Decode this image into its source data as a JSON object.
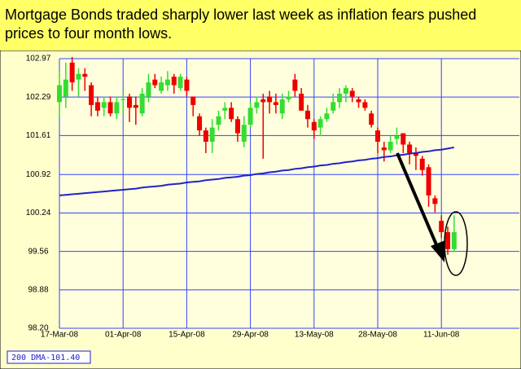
{
  "chart_data": {
    "type": "candlestick",
    "title": "Mortgage Bonds traded sharply lower last week as inflation fears pushed prices to four month lows.",
    "categories": [
      "17-Mar-08",
      null,
      null,
      null,
      null,
      null,
      null,
      null,
      null,
      null,
      "01-Apr-08",
      null,
      null,
      null,
      null,
      null,
      null,
      null,
      null,
      null,
      "15-Apr-08",
      null,
      null,
      null,
      null,
      null,
      null,
      null,
      null,
      null,
      "29-Apr-08",
      null,
      null,
      null,
      null,
      null,
      null,
      null,
      null,
      null,
      "13-May-08",
      null,
      null,
      null,
      null,
      null,
      null,
      null,
      null,
      null,
      "28-May-08",
      null,
      null,
      null,
      null,
      null,
      null,
      null,
      null,
      null,
      "11-Jun-08",
      null,
      null
    ],
    "open": [
      102.2,
      102.3,
      102.9,
      102.6,
      102.7,
      102.5,
      102.2,
      102.1,
      102.2,
      102.0,
      102.25,
      102.3,
      102.15,
      102.0,
      102.3,
      102.6,
      102.4,
      102.5,
      102.65,
      102.45,
      102.6,
      102.3,
      101.95,
      101.7,
      101.5,
      101.8,
      102.05,
      102.1,
      101.9,
      101.5,
      101.8,
      102.1,
      102.25,
      102.3,
      102.2,
      102.0,
      102.25,
      102.6,
      102.35,
      102.05,
      101.85,
      101.75,
      101.9,
      102.05,
      102.2,
      102.35,
      102.4,
      102.25,
      102.2,
      102.0,
      101.7,
      101.4,
      101.35,
      101.55,
      101.65,
      101.45,
      101.3,
      101.2,
      101.05,
      100.5,
      100.1,
      99.9,
      99.6
    ],
    "high": [
      102.75,
      102.9,
      103.0,
      102.8,
      102.8,
      102.55,
      102.3,
      102.3,
      102.3,
      102.3,
      102.35,
      102.35,
      102.3,
      102.45,
      102.7,
      102.7,
      102.65,
      102.75,
      102.7,
      102.7,
      102.65,
      102.3,
      102.0,
      101.75,
      101.9,
      102.05,
      102.2,
      102.2,
      101.95,
      101.95,
      102.2,
      102.3,
      102.35,
      102.4,
      102.35,
      102.35,
      102.4,
      102.7,
      102.45,
      102.15,
      101.9,
      101.95,
      102.1,
      102.35,
      102.45,
      102.5,
      102.45,
      102.3,
      102.25,
      102.05,
      101.75,
      101.5,
      101.6,
      101.75,
      101.65,
      101.5,
      101.4,
      101.25,
      101.1,
      100.55,
      100.2,
      100.0,
      100.2
    ],
    "low": [
      101.95,
      102.1,
      102.4,
      102.3,
      102.4,
      101.95,
      101.95,
      101.95,
      101.95,
      101.9,
      102.0,
      101.85,
      101.8,
      101.95,
      102.2,
      102.45,
      102.35,
      102.4,
      102.35,
      102.4,
      102.3,
      101.95,
      101.6,
      101.3,
      101.3,
      101.7,
      101.9,
      101.85,
      101.5,
      101.4,
      101.75,
      102.0,
      101.2,
      102.0,
      102.0,
      101.9,
      102.2,
      102.3,
      102.05,
      101.75,
      101.55,
      101.6,
      101.85,
      102.0,
      102.1,
      102.2,
      102.2,
      102.1,
      102.05,
      101.75,
      101.3,
      101.15,
      101.3,
      101.45,
      101.3,
      101.1,
      101.0,
      100.9,
      100.35,
      100.25,
      99.8,
      99.5,
      99.55
    ],
    "close": [
      102.5,
      102.6,
      102.55,
      102.7,
      102.65,
      102.15,
      102.05,
      102.2,
      102.0,
      102.2,
      102.25,
      102.1,
      102.1,
      102.35,
      102.55,
      102.5,
      102.55,
      102.6,
      102.5,
      102.65,
      102.4,
      102.15,
      101.7,
      101.5,
      101.75,
      101.95,
      102.1,
      101.9,
      101.65,
      101.8,
      102.1,
      102.2,
      102.2,
      102.2,
      102.15,
      102.25,
      102.3,
      102.4,
      102.05,
      101.9,
      101.7,
      101.9,
      102.0,
      102.2,
      102.35,
      102.45,
      102.3,
      102.2,
      102.1,
      101.8,
      101.5,
      101.35,
      101.5,
      101.6,
      101.45,
      101.3,
      101.25,
      101.0,
      100.55,
      100.4,
      99.9,
      99.6,
      99.9
    ],
    "up_color": "#33dd33",
    "down_color": "#ee0000",
    "series": [
      {
        "name": "200 DMA-101.40",
        "color": "#2222cc",
        "values": [
          100.55,
          100.56,
          100.57,
          100.58,
          100.59,
          100.6,
          100.61,
          100.62,
          100.63,
          100.64,
          100.65,
          100.66,
          100.67,
          100.69,
          100.7,
          100.71,
          100.72,
          100.74,
          100.75,
          100.76,
          100.78,
          100.79,
          100.8,
          100.82,
          100.83,
          100.84,
          100.86,
          100.87,
          100.88,
          100.9,
          100.91,
          100.93,
          100.94,
          100.96,
          100.97,
          100.99,
          101.0,
          101.02,
          101.03,
          101.05,
          101.06,
          101.08,
          101.09,
          101.11,
          101.12,
          101.14,
          101.15,
          101.17,
          101.18,
          101.2,
          101.21,
          101.23,
          101.24,
          101.26,
          101.27,
          101.29,
          101.3,
          101.32,
          101.33,
          101.35,
          101.36,
          101.38,
          101.4
        ]
      }
    ],
    "ylim": [
      98.2,
      102.97
    ],
    "yticks": [
      {
        "value": 98.2,
        "label": "98.20"
      },
      98.88,
      99.56,
      100.24,
      100.92,
      101.61,
      102.29,
      102.97
    ],
    "grid": true,
    "grid_color": "#3344ff"
  }
}
